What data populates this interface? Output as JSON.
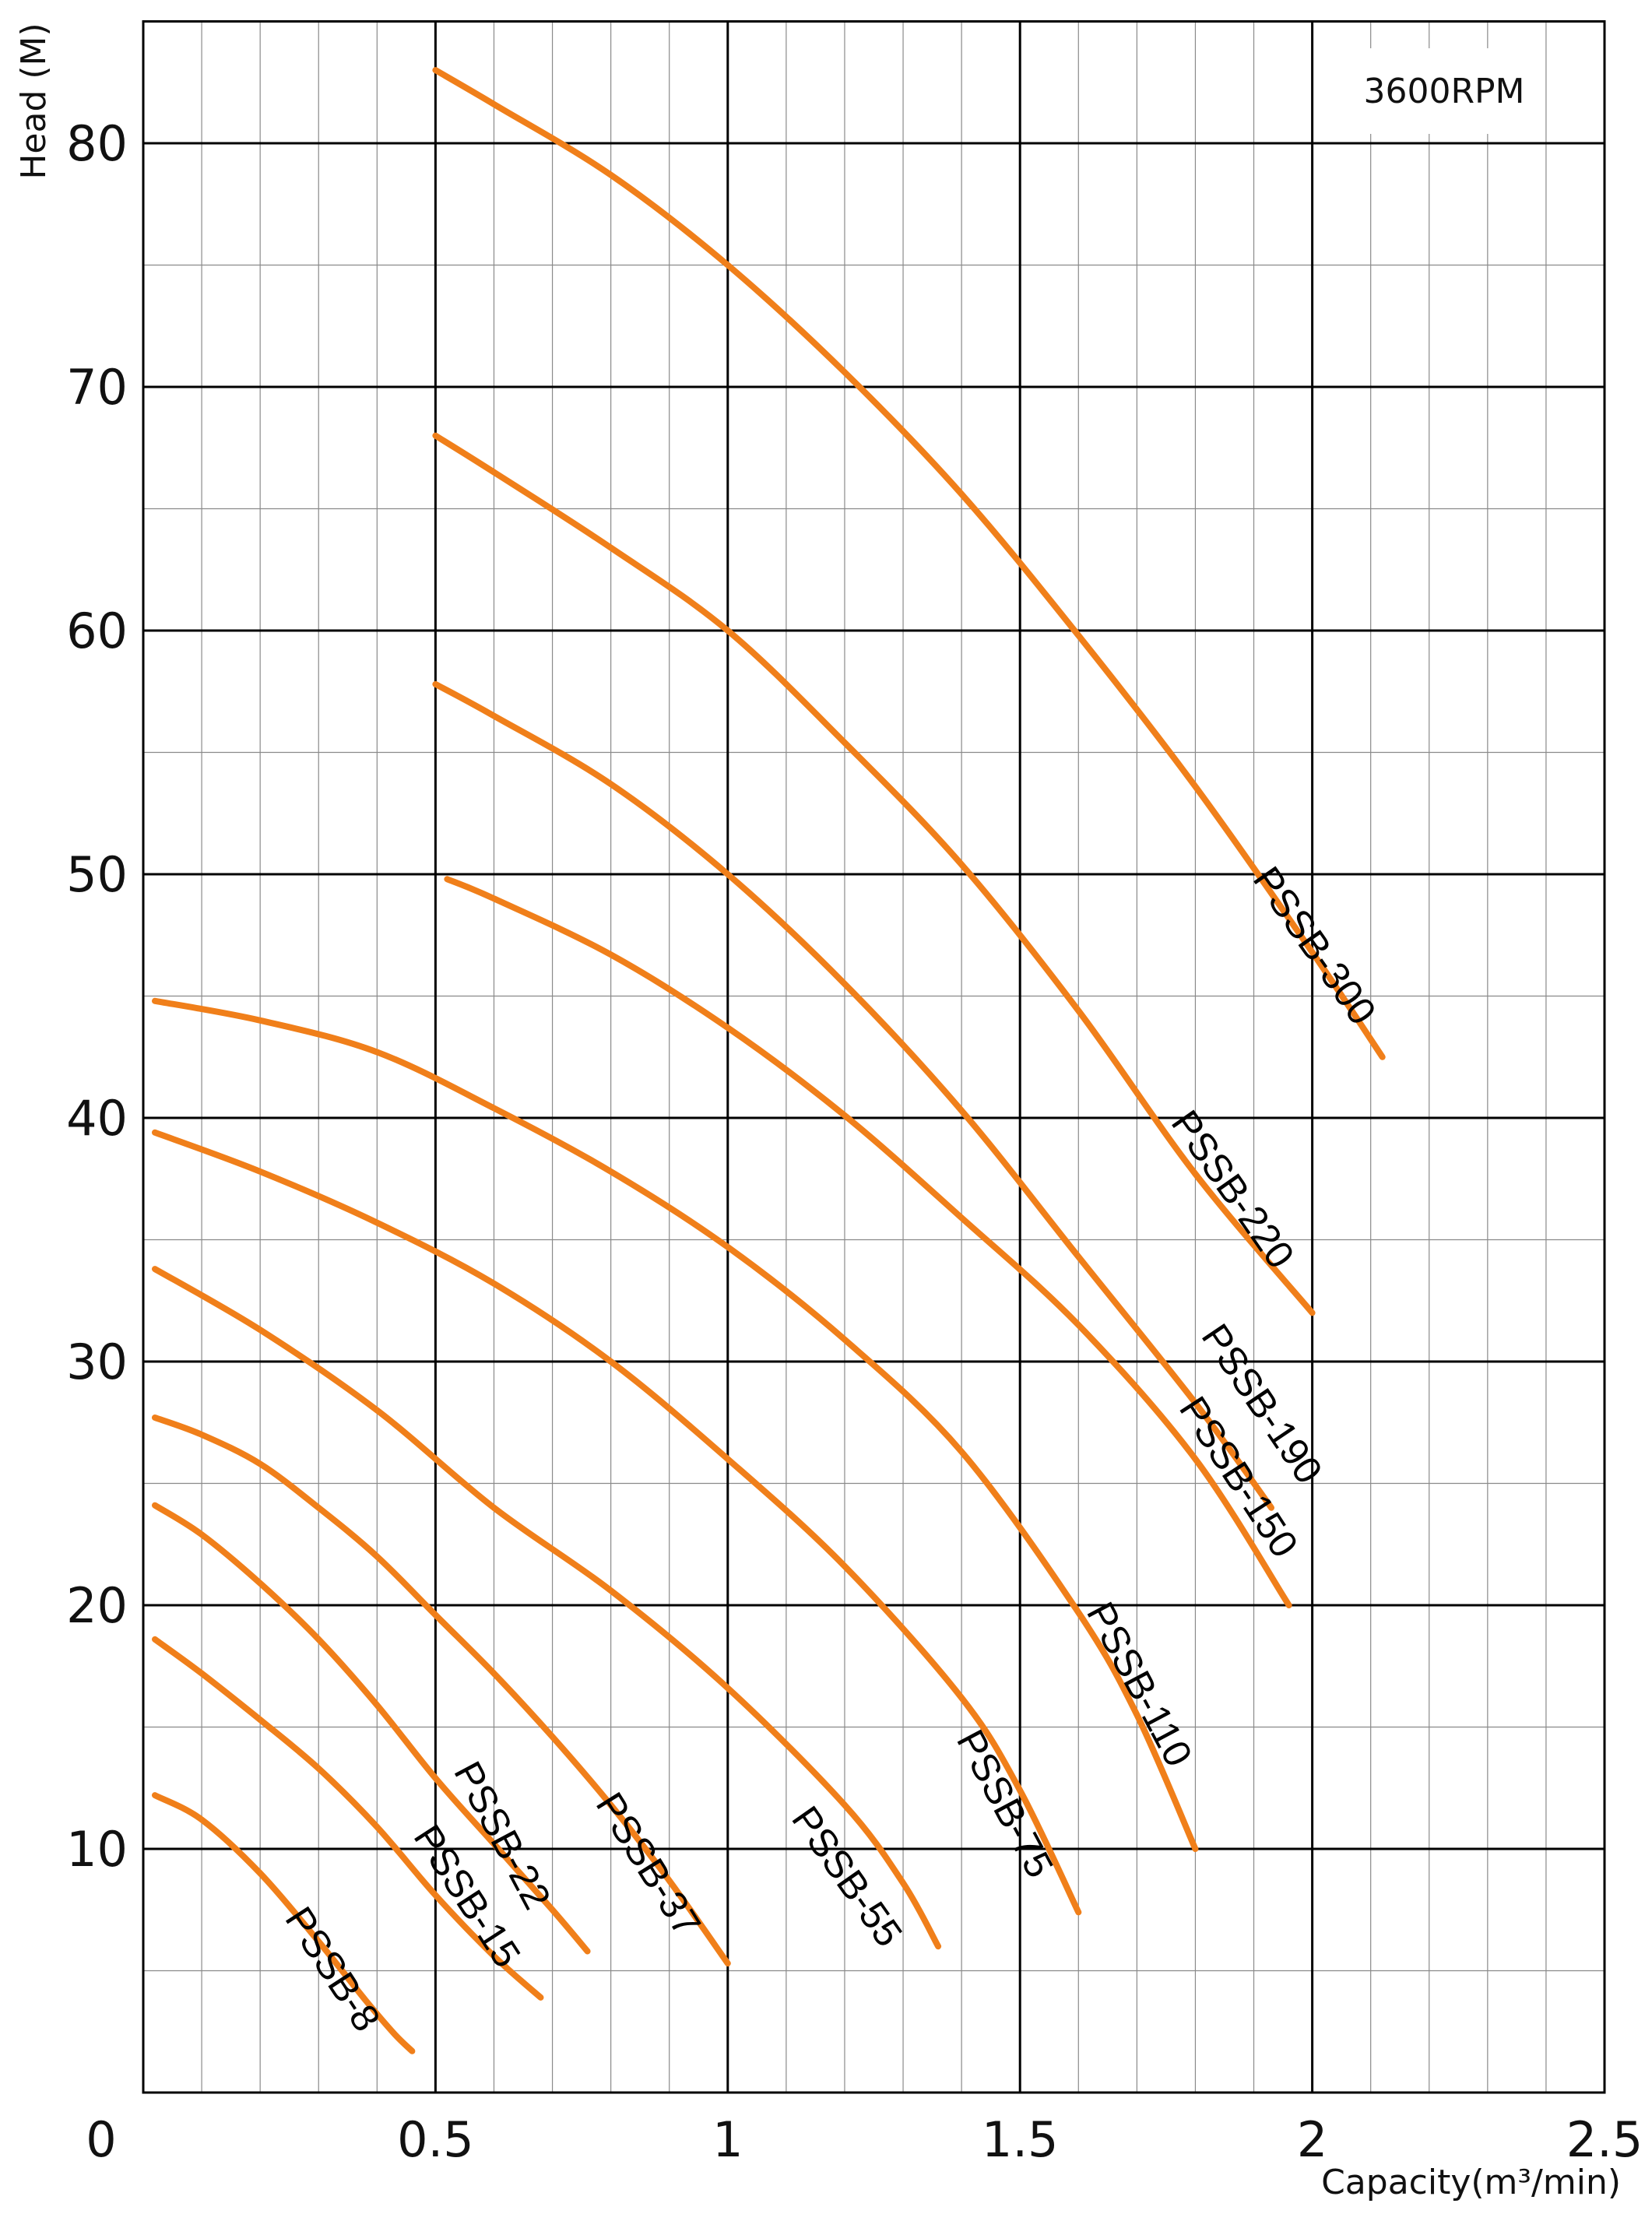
{
  "chart_data": {
    "type": "line",
    "title": "",
    "annotation": "3600RPM",
    "xlabel": "Capacity(m³/min)",
    "ylabel": "Head (M)",
    "xlim": [
      0,
      2.5
    ],
    "ylim": [
      0,
      85
    ],
    "x_ticks": [
      0,
      0.5,
      1,
      1.5,
      2,
      2.5
    ],
    "x_tick_labels": [
      "0",
      "0.5",
      "1",
      "1.5",
      "2",
      "2.5"
    ],
    "y_ticks": [
      10,
      20,
      30,
      40,
      50,
      60,
      70,
      80
    ],
    "y_tick_labels": [
      "10",
      "20",
      "30",
      "40",
      "50",
      "60",
      "70",
      "80"
    ],
    "grid": true,
    "curve_color": "#f07f1a",
    "series": [
      {
        "name": "PSSB-8",
        "x": [
          0.02,
          0.1,
          0.2,
          0.3,
          0.38,
          0.43,
          0.46
        ],
        "y": [
          12.2,
          11.2,
          9.0,
          6.2,
          3.8,
          2.4,
          1.7
        ]
      },
      {
        "name": "PSSB-15",
        "x": [
          0.02,
          0.1,
          0.2,
          0.3,
          0.4,
          0.5,
          0.6,
          0.68
        ],
        "y": [
          18.6,
          17.2,
          15.3,
          13.3,
          10.9,
          8.1,
          5.6,
          3.9
        ]
      },
      {
        "name": "PSSB-22",
        "x": [
          0.02,
          0.1,
          0.2,
          0.3,
          0.4,
          0.5,
          0.6,
          0.7,
          0.76
        ],
        "y": [
          24.1,
          22.9,
          20.9,
          18.6,
          15.9,
          12.9,
          10.2,
          7.5,
          5.8
        ]
      },
      {
        "name": "PSSB-37",
        "x": [
          0.02,
          0.1,
          0.2,
          0.3,
          0.4,
          0.5,
          0.6,
          0.7,
          0.8,
          0.9,
          1.0
        ],
        "y": [
          27.7,
          27.0,
          25.8,
          24.0,
          22.0,
          19.6,
          17.2,
          14.6,
          11.8,
          8.7,
          5.3
        ]
      },
      {
        "name": "PSSB-55",
        "x": [
          0.02,
          0.2,
          0.4,
          0.6,
          0.8,
          1.0,
          1.2,
          1.3,
          1.36
        ],
        "y": [
          33.8,
          31.3,
          28.0,
          24.0,
          20.6,
          16.6,
          11.8,
          8.6,
          6.0
        ]
      },
      {
        "name": "PSSB-75",
        "x": [
          0.02,
          0.2,
          0.4,
          0.6,
          0.8,
          1.0,
          1.2,
          1.4,
          1.5,
          1.6
        ],
        "y": [
          39.4,
          37.8,
          35.7,
          33.2,
          30.0,
          26.0,
          21.6,
          16.2,
          12.4,
          7.4
        ]
      },
      {
        "name": "PSSB-110",
        "x": [
          0.02,
          0.2,
          0.4,
          0.6,
          0.8,
          1.0,
          1.2,
          1.4,
          1.6,
          1.7,
          1.8
        ],
        "y": [
          44.8,
          44.0,
          42.7,
          40.4,
          37.8,
          34.7,
          30.9,
          26.3,
          19.7,
          15.5,
          10.0
        ]
      },
      {
        "name": "PSSB-150",
        "x": [
          0.52,
          0.6,
          0.8,
          1.0,
          1.2,
          1.4,
          1.6,
          1.8,
          1.96
        ],
        "y": [
          49.8,
          49.0,
          46.7,
          43.7,
          40.1,
          35.9,
          31.5,
          26.0,
          20.0
        ]
      },
      {
        "name": "PSSB-190",
        "x": [
          0.5,
          0.6,
          0.8,
          1.0,
          1.2,
          1.4,
          1.6,
          1.8,
          1.93
        ],
        "y": [
          57.8,
          56.5,
          53.7,
          50.0,
          45.5,
          40.3,
          34.3,
          28.3,
          24.0
        ]
      },
      {
        "name": "PSSB-220",
        "x": [
          0.5,
          0.6,
          0.8,
          1.0,
          1.2,
          1.4,
          1.6,
          1.8,
          2.0
        ],
        "y": [
          68.0,
          66.5,
          63.4,
          60.0,
          55.4,
          50.4,
          44.4,
          37.7,
          32.0
        ]
      },
      {
        "name": "PSSB-300",
        "x": [
          0.5,
          0.6,
          0.8,
          1.0,
          1.2,
          1.4,
          1.6,
          1.8,
          2.0,
          2.12
        ],
        "y": [
          83.0,
          81.6,
          78.7,
          75.0,
          70.6,
          65.6,
          59.8,
          53.6,
          46.8,
          42.5
        ]
      }
    ],
    "labels": [
      {
        "series": "PSSB-8",
        "text": "PSSB-8",
        "x": 0.32,
        "y": 5.0,
        "angle": 57
      },
      {
        "series": "PSSB-15",
        "text": "PSSB-15",
        "x": 0.55,
        "y": 8.0,
        "angle": 57
      },
      {
        "series": "PSSB-22",
        "text": "PSSB-22",
        "x": 0.61,
        "y": 10.5,
        "angle": 62
      },
      {
        "series": "PSSB-37",
        "text": "PSSB-37",
        "x": 0.86,
        "y": 9.3,
        "angle": 58
      },
      {
        "series": "PSSB-55",
        "text": "PSSB-55",
        "x": 1.2,
        "y": 8.8,
        "angle": 55
      },
      {
        "series": "PSSB-75",
        "text": "PSSB-75",
        "x": 1.47,
        "y": 11.8,
        "angle": 62
      },
      {
        "series": "PSSB-110",
        "text": "PSSB-110",
        "x": 1.7,
        "y": 16.7,
        "angle": 62
      },
      {
        "series": "PSSB-150",
        "text": "PSSB-150",
        "x": 1.87,
        "y": 25.2,
        "angle": 57
      },
      {
        "series": "PSSB-190",
        "text": "PSSB-190",
        "x": 1.91,
        "y": 28.2,
        "angle": 56
      },
      {
        "series": "PSSB-220",
        "text": "PSSB-220",
        "x": 1.86,
        "y": 37.0,
        "angle": 55
      },
      {
        "series": "PSSB-300",
        "text": "PSSB-300",
        "x": 2.0,
        "y": 47.0,
        "angle": 55
      }
    ]
  }
}
